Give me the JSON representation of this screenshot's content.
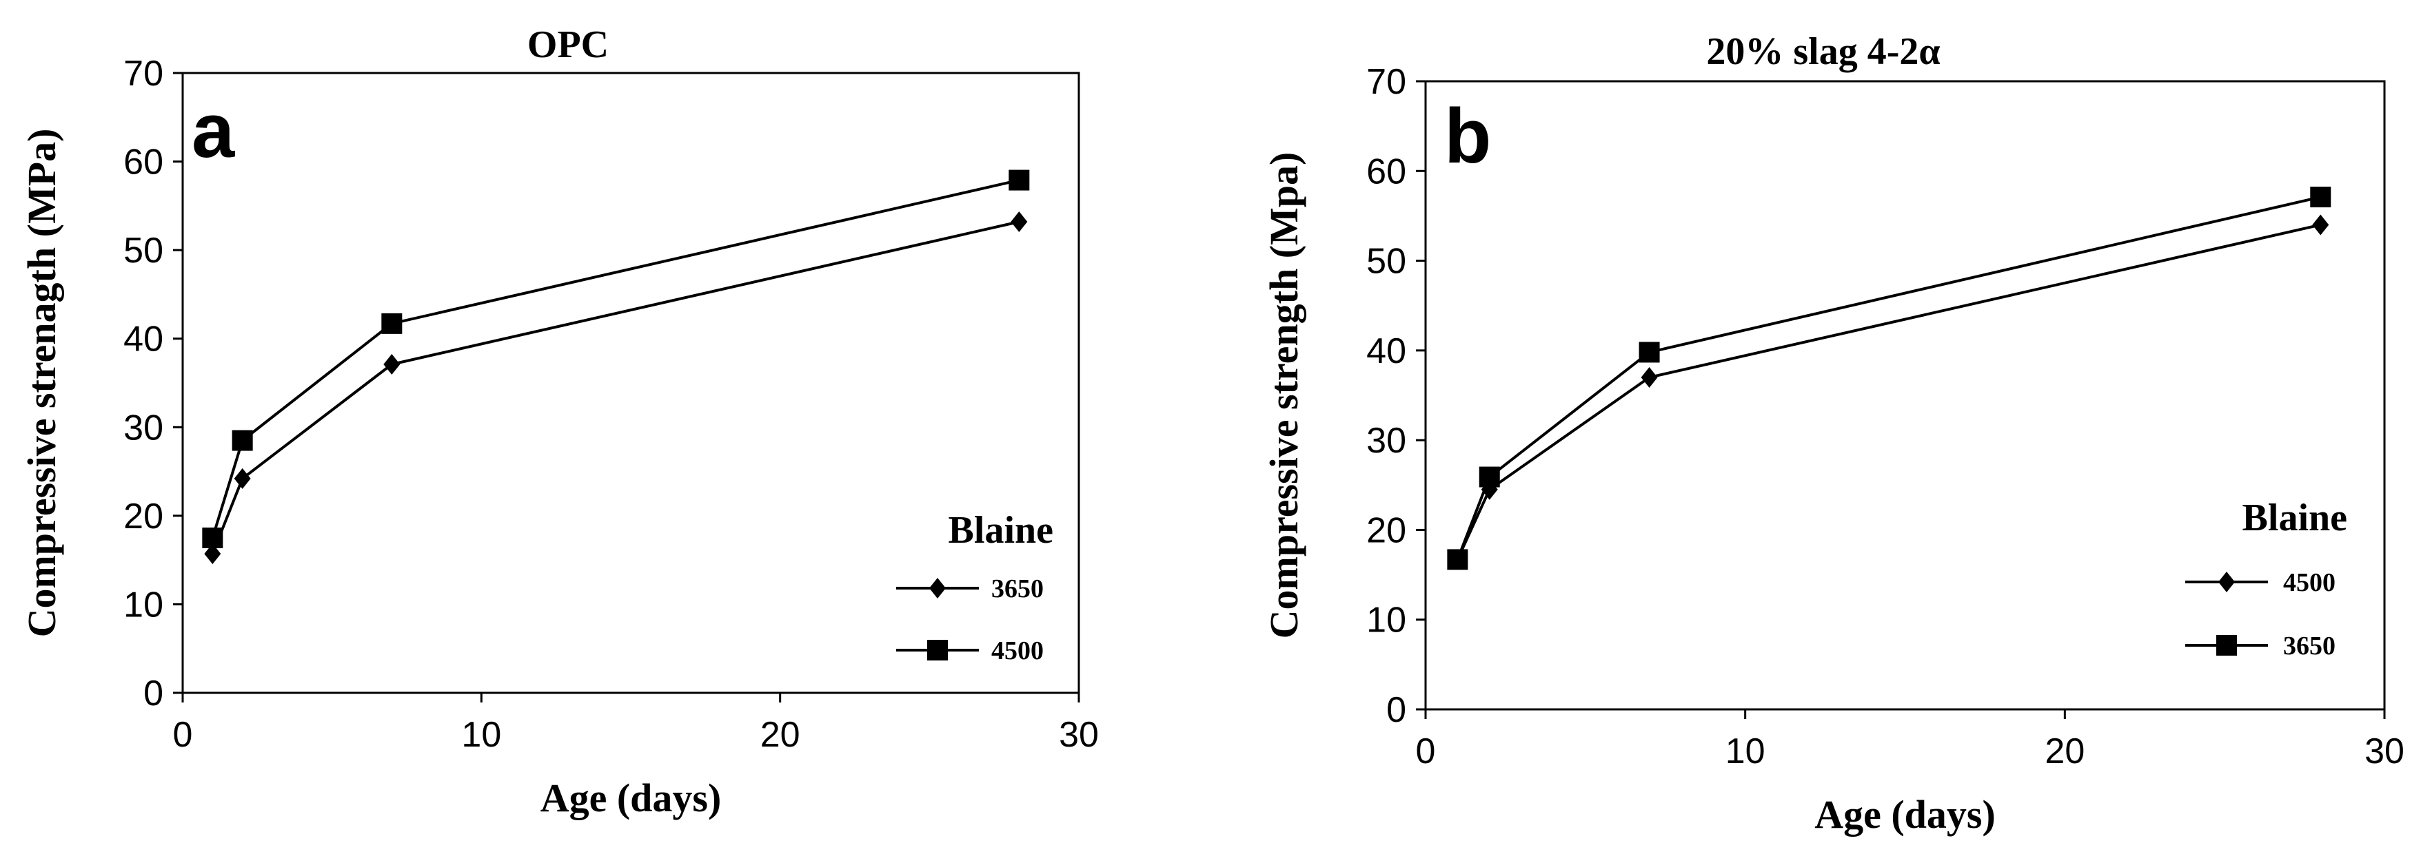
{
  "panels": [
    {
      "letter": "a",
      "legend_title": "Blaine"
    },
    {
      "letter": "b",
      "legend_title": "Blaine"
    }
  ],
  "chart_data": [
    {
      "type": "line",
      "title": "OPC",
      "xlabel": "Age (days)",
      "ylabel": "Compressive strenagth (MPa)",
      "xlim": [
        0,
        30
      ],
      "ylim": [
        0,
        70
      ],
      "xticks": [
        0,
        10,
        20,
        30
      ],
      "yticks": [
        0,
        10,
        20,
        30,
        40,
        50,
        60,
        70
      ],
      "grid": false,
      "legend_position": "bottom-right",
      "x": [
        1,
        2,
        7,
        28
      ],
      "series": [
        {
          "name": "3650",
          "marker": "diamond",
          "values": [
            15.7,
            24.2,
            37.1,
            53.2
          ]
        },
        {
          "name": "4500",
          "marker": "square",
          "values": [
            17.5,
            28.5,
            41.7,
            57.9
          ]
        }
      ]
    },
    {
      "type": "line",
      "title": "20% slag 4-2α",
      "xlabel": "Age (days)",
      "ylabel": "Compressive strength (Mpa)",
      "xlim": [
        0,
        30
      ],
      "ylim": [
        0,
        70
      ],
      "xticks": [
        0,
        10,
        20,
        30
      ],
      "yticks": [
        0,
        10,
        20,
        30,
        40,
        50,
        60,
        70
      ],
      "grid": false,
      "legend_position": "bottom-right",
      "x": [
        1,
        2,
        7,
        28
      ],
      "series": [
        {
          "name": "4500",
          "marker": "diamond",
          "values": [
            16.7,
            24.5,
            37.0,
            54.0
          ]
        },
        {
          "name": "3650",
          "marker": "square",
          "values": [
            16.7,
            25.9,
            39.8,
            57.1
          ]
        }
      ]
    }
  ]
}
